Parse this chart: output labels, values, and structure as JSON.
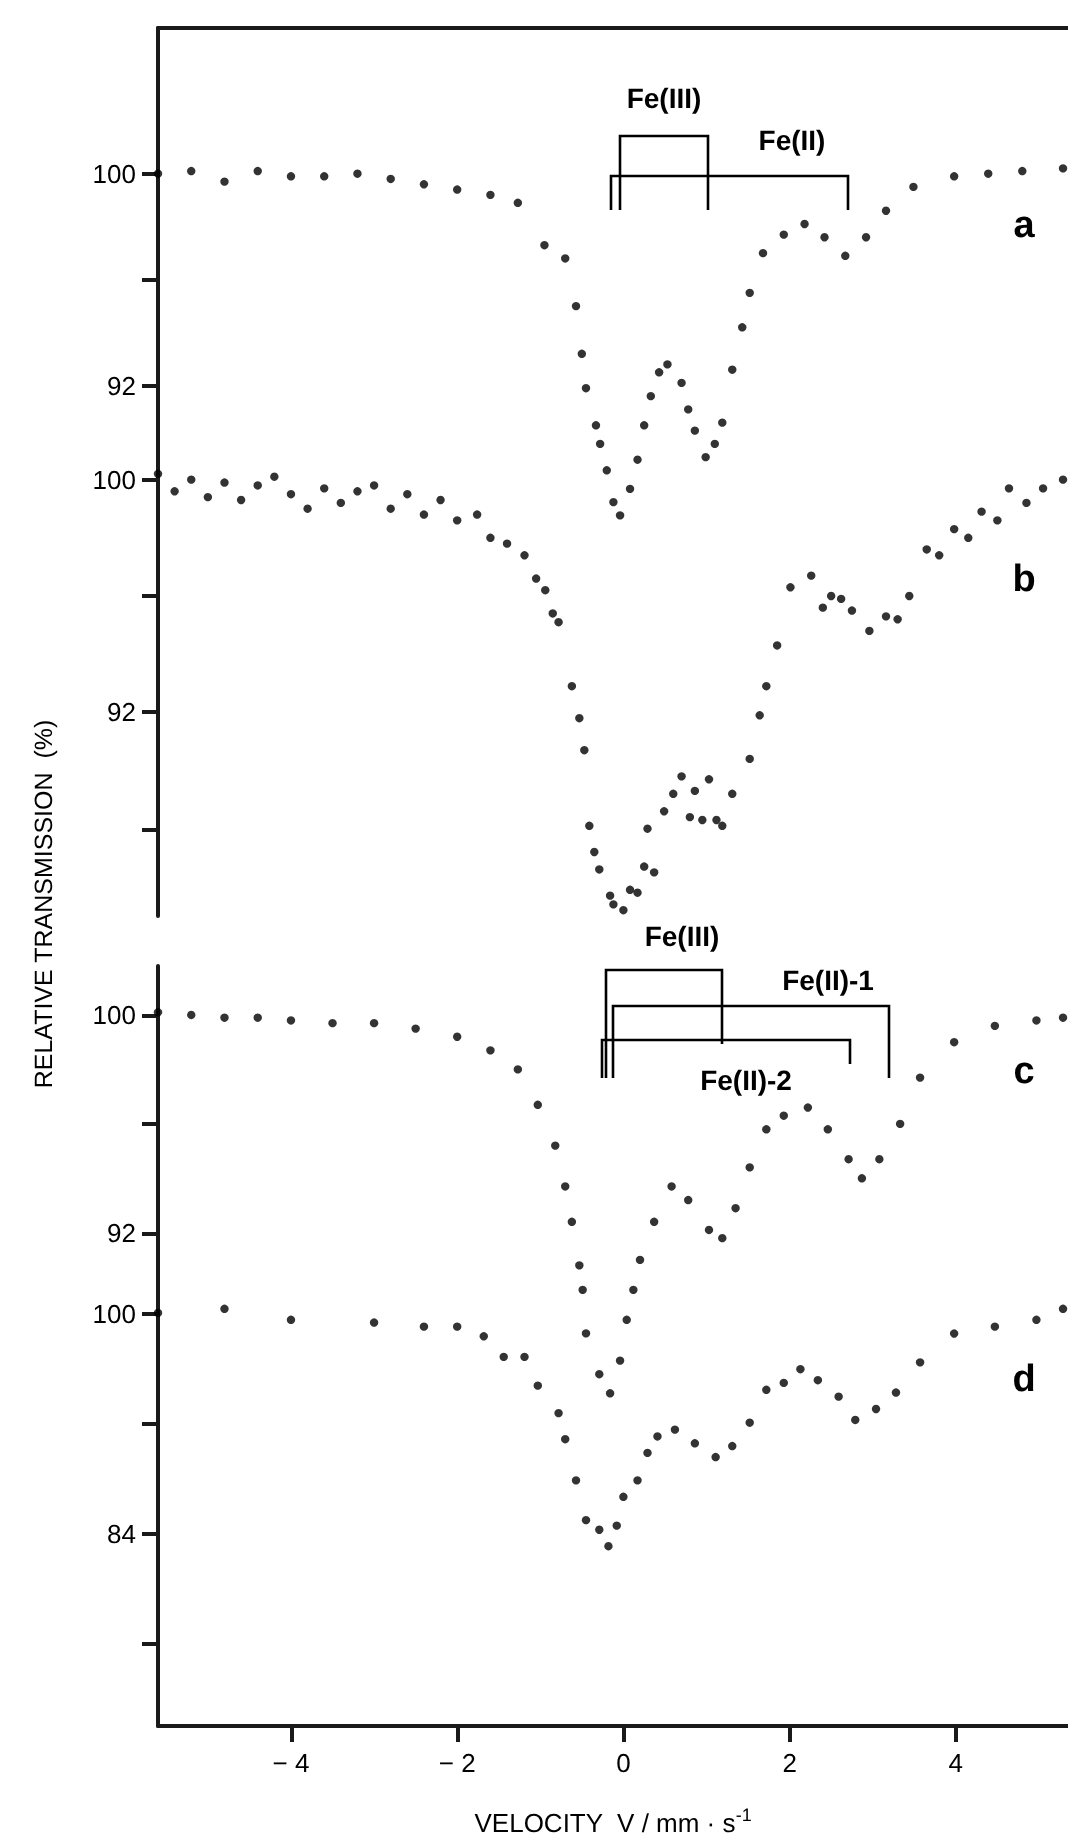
{
  "chart_data": [
    {
      "type": "scatter",
      "marker": "circle",
      "tick_labels": "y",
      "annotations": [
        "a",
        "Fe(III)",
        "Fe(II)"
      ],
      "xlim": [
        -5.6,
        5.35
      ],
      "ylim": [
        87,
        105.5
      ],
      "yticks": [
        92,
        {
          "value": 96,
          "label": null
        },
        100
      ],
      "series": [
        {
          "color": "#000000",
          "x": [
            -5.6,
            -5.2,
            -4.8,
            -4.4,
            -4.0,
            -3.6,
            -3.2,
            -2.8,
            -2.4,
            -2.0,
            -1.6,
            -1.27,
            -0.95,
            -0.7,
            -0.57,
            -0.5,
            -0.45,
            -0.33,
            -0.28,
            -0.2,
            -0.12,
            -0.04,
            0.08,
            0.17,
            0.25,
            0.33,
            0.43,
            0.53,
            0.7,
            0.78,
            0.86,
            0.99,
            1.1,
            1.19,
            1.31,
            1.43,
            1.52,
            1.68,
            1.93,
            2.18,
            2.42,
            2.67,
            2.92,
            3.16,
            3.49,
            3.98,
            4.39,
            4.8,
            5.29
          ],
          "values": [
            100.0,
            100.1,
            99.7,
            100.1,
            99.9,
            99.9,
            100.0,
            99.8,
            99.6,
            99.4,
            99.2,
            98.9,
            97.3,
            96.8,
            95.0,
            93.2,
            91.9,
            90.5,
            89.8,
            88.8,
            87.6,
            87.1,
            88.1,
            89.2,
            90.5,
            91.6,
            92.5,
            92.8,
            92.1,
            91.1,
            90.3,
            89.3,
            89.8,
            90.6,
            92.6,
            94.2,
            95.5,
            97.0,
            97.7,
            98.1,
            97.6,
            96.9,
            97.6,
            98.6,
            99.5,
            99.9,
            100.0,
            100.1,
            100.2
          ]
        }
      ]
    },
    {
      "type": "scatter",
      "marker": "circle",
      "tick_labels": "y",
      "ylabel": "RELATIVE TRANSMISSION  (%)",
      "annotations": [
        "b"
      ],
      "xlim": [
        -5.6,
        5.35
      ],
      "ylim": [
        85,
        101.5
      ],
      "yticks": [
        {
          "value": 88,
          "label": null
        },
        92,
        {
          "value": 96,
          "label": null
        },
        100
      ],
      "series": [
        {
          "color": "#000000",
          "x": [
            -5.6,
            -5.4,
            -5.2,
            -5.0,
            -4.8,
            -4.6,
            -4.4,
            -4.2,
            -4.0,
            -3.8,
            -3.6,
            -3.4,
            -3.2,
            -3.0,
            -2.8,
            -2.6,
            -2.4,
            -2.2,
            -2.0,
            -1.76,
            -1.6,
            -1.4,
            -1.19,
            -1.05,
            -0.94,
            -0.85,
            -0.78,
            -0.62,
            -0.53,
            -0.47,
            -0.41,
            -0.35,
            -0.29,
            -0.16,
            -0.12,
            0.0,
            0.08,
            0.17,
            0.25,
            0.29,
            0.37,
            0.49,
            0.6,
            0.7,
            0.8,
            0.86,
            0.95,
            1.03,
            1.12,
            1.19,
            1.31,
            1.52,
            1.64,
            1.72,
            1.85,
            2.01,
            2.26,
            2.4,
            2.5,
            2.62,
            2.75,
            2.96,
            3.16,
            3.3,
            3.44,
            3.65,
            3.8,
            3.98,
            4.15,
            4.31,
            4.5,
            4.64,
            4.85,
            5.05,
            5.29
          ],
          "values": [
            100.2,
            99.6,
            100.0,
            99.4,
            99.9,
            99.3,
            99.8,
            100.1,
            99.5,
            99.0,
            99.7,
            99.2,
            99.6,
            99.8,
            99.0,
            99.5,
            98.8,
            99.3,
            98.6,
            98.8,
            98.0,
            97.8,
            97.4,
            96.6,
            96.2,
            95.4,
            95.1,
            92.9,
            91.8,
            90.7,
            88.1,
            87.2,
            86.6,
            85.7,
            85.4,
            85.2,
            85.9,
            85.8,
            86.7,
            88.0,
            86.5,
            88.6,
            89.2,
            89.8,
            88.4,
            89.3,
            88.3,
            89.7,
            88.3,
            88.1,
            89.2,
            90.4,
            91.9,
            92.9,
            94.3,
            96.3,
            96.7,
            95.6,
            96.0,
            95.9,
            95.5,
            94.8,
            95.3,
            95.2,
            96.0,
            97.6,
            97.4,
            98.3,
            98.0,
            98.9,
            98.6,
            99.7,
            99.2,
            99.7,
            100.0
          ]
        }
      ]
    },
    {
      "type": "scatter",
      "marker": "circle",
      "tick_labels": "y",
      "annotations": [
        "c",
        "Fe(III)",
        "Fe(II)-1",
        "Fe(II)-2"
      ],
      "xlim": [
        -5.6,
        5.35
      ],
      "ylim": [
        86,
        101.8
      ],
      "yticks": [
        92,
        {
          "value": 96,
          "label": null
        },
        100
      ],
      "series": [
        {
          "color": "#000000",
          "x": [
            -5.6,
            -5.2,
            -4.8,
            -4.4,
            -4.0,
            -3.5,
            -3.0,
            -2.5,
            -2.0,
            -1.6,
            -1.27,
            -1.03,
            -0.82,
            -0.7,
            -0.62,
            -0.53,
            -0.49,
            -0.45,
            -0.29,
            -0.16,
            -0.04,
            0.04,
            0.12,
            0.2,
            0.37,
            0.58,
            0.78,
            1.03,
            1.19,
            1.35,
            1.52,
            1.72,
            1.93,
            2.22,
            2.46,
            2.71,
            2.87,
            3.08,
            3.33,
            3.57,
            3.98,
            4.47,
            4.97,
            5.29
          ],
          "values": [
            100.1,
            100.0,
            99.9,
            99.9,
            99.8,
            99.7,
            99.7,
            99.5,
            99.2,
            98.7,
            98.0,
            96.7,
            95.2,
            93.7,
            92.4,
            90.8,
            89.9,
            88.3,
            86.8,
            86.1,
            87.3,
            88.8,
            89.9,
            91.0,
            92.4,
            93.7,
            93.2,
            92.1,
            91.8,
            92.9,
            94.4,
            95.8,
            96.3,
            96.6,
            95.8,
            94.7,
            94.0,
            94.7,
            96.0,
            97.7,
            99.0,
            99.6,
            99.8,
            99.9
          ]
        }
      ]
    },
    {
      "type": "scatter",
      "marker": "circle",
      "xlabel": "VELOCITY  V / mm · s$^{-1}$",
      "annotations": [
        "d"
      ],
      "xlim": [
        -5.6,
        5.35
      ],
      "xticks": [
        -4,
        -2,
        0,
        2,
        4
      ],
      "ylim": [
        70,
        102.5
      ],
      "yticks": [
        {
          "value": 76,
          "label": null
        },
        84,
        {
          "value": 92,
          "label": null
        },
        100
      ],
      "series": [
        {
          "color": "#000000",
          "x": [
            -5.6,
            -4.8,
            -4.0,
            -3.0,
            -2.4,
            -2.0,
            -1.68,
            -1.44,
            -1.19,
            -1.03,
            -0.78,
            -0.7,
            -0.57,
            -0.45,
            -0.29,
            -0.18,
            -0.08,
            0.0,
            0.17,
            0.29,
            0.41,
            0.62,
            0.86,
            1.11,
            1.31,
            1.52,
            1.72,
            1.93,
            2.13,
            2.34,
            2.59,
            2.79,
            3.04,
            3.28,
            3.57,
            3.98,
            4.47,
            4.97,
            5.29
          ],
          "values": [
            100.1,
            100.4,
            99.6,
            99.4,
            99.1,
            99.1,
            98.4,
            96.9,
            96.9,
            94.8,
            92.8,
            90.9,
            87.9,
            85.0,
            84.3,
            83.1,
            84.6,
            86.7,
            87.9,
            89.9,
            91.1,
            91.6,
            90.6,
            89.6,
            90.4,
            92.1,
            94.5,
            95.0,
            96.0,
            95.2,
            94.0,
            92.3,
            93.1,
            94.3,
            96.5,
            98.6,
            99.1,
            99.6,
            100.4
          ]
        }
      ]
    }
  ]
}
